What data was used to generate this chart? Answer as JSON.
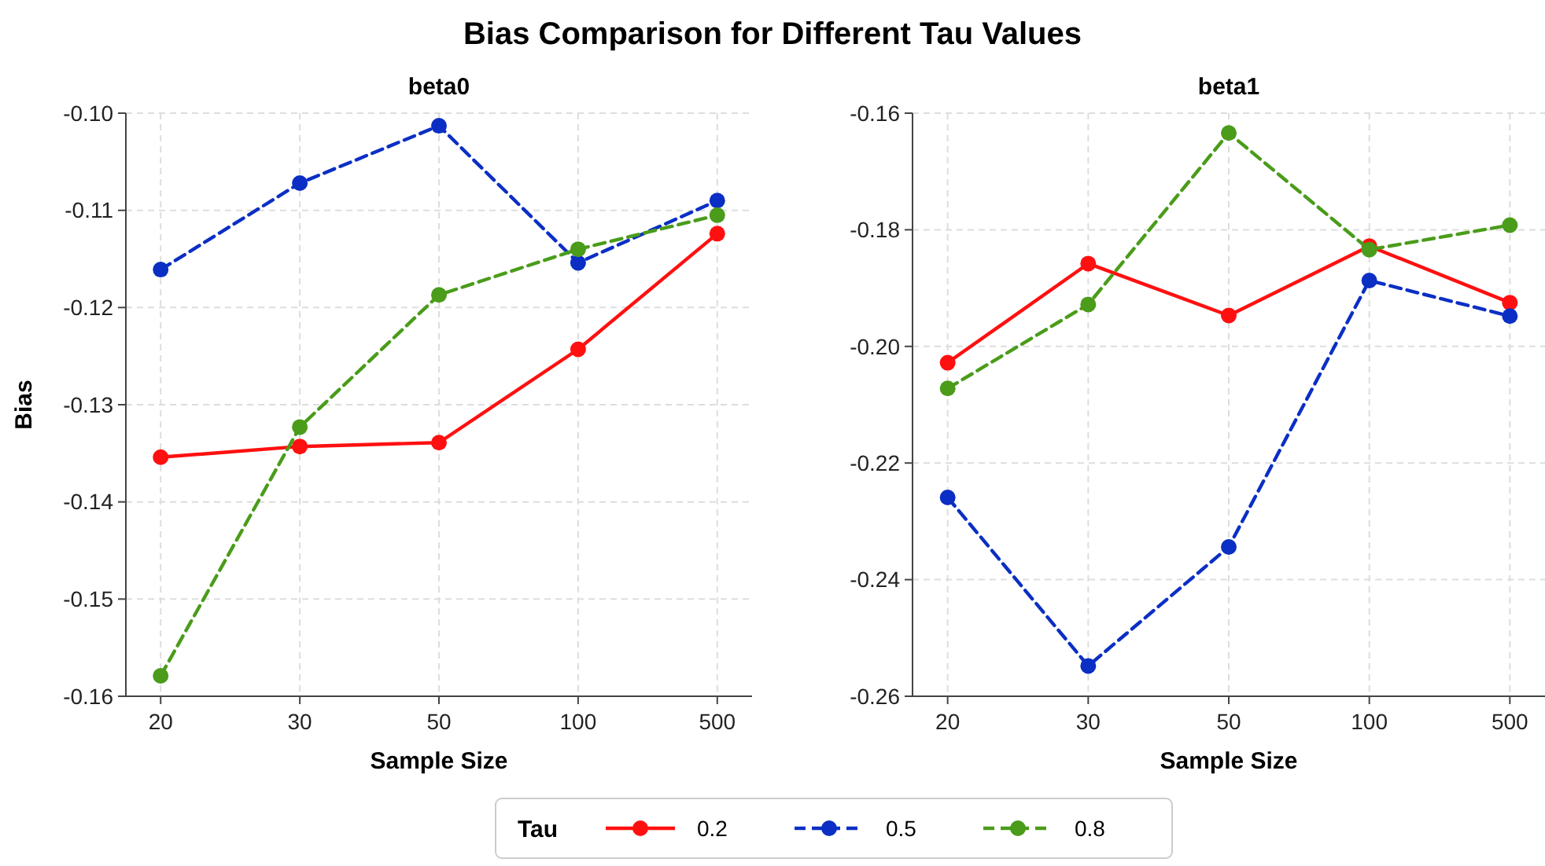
{
  "chart_data": [
    {
      "type": "line",
      "title": "beta0",
      "annotations": [
        "Bias Comparison for Different Tau Values"
      ],
      "xlabel": "Sample Size",
      "ylabel": "Bias",
      "categories": [
        "20",
        "30",
        "50",
        "100",
        "500"
      ],
      "ylim": [
        -0.16,
        -0.1
      ],
      "yticks": [
        {
          "value": -0.16,
          "label": "-0.16"
        },
        {
          "value": -0.15,
          "label": "-0.15"
        },
        {
          "value": -0.14,
          "label": "-0.14"
        },
        {
          "value": -0.13,
          "label": "-0.13"
        },
        {
          "value": -0.12,
          "label": "-0.12"
        },
        {
          "value": -0.11,
          "label": "-0.11"
        },
        {
          "value": -0.1,
          "label": "-0.10"
        }
      ],
      "grid": true,
      "marker": "circle",
      "legend": "bottom",
      "legend_title": "Tau",
      "series": [
        {
          "name": "0.2",
          "color": "#ff1010",
          "line_style": "solid",
          "values": [
            -0.1354,
            -0.1343,
            -0.1339,
            -0.1243,
            -0.1124
          ]
        },
        {
          "name": "0.5",
          "color": "#0b2fc4",
          "line_style": "dashed",
          "values": [
            -0.1161,
            -0.1072,
            -0.1013,
            -0.1154,
            -0.109
          ]
        },
        {
          "name": "0.8",
          "color": "#4a9c1a",
          "line_style": "dashed",
          "values": [
            -0.1579,
            -0.1323,
            -0.1187,
            -0.114,
            -0.1105
          ]
        }
      ]
    },
    {
      "type": "line",
      "title": "beta1",
      "xlabel": "Sample Size",
      "categories": [
        "20",
        "30",
        "50",
        "100",
        "500"
      ],
      "ylim": [
        -0.26,
        -0.16
      ],
      "yticks": [
        {
          "value": -0.26,
          "label": "-0.26"
        },
        {
          "value": -0.24,
          "label": "-0.24"
        },
        {
          "value": -0.22,
          "label": "-0.22"
        },
        {
          "value": -0.2,
          "label": "-0.20"
        },
        {
          "value": -0.18,
          "label": "-0.18"
        },
        {
          "value": -0.16,
          "label": "-0.16"
        }
      ],
      "grid": true,
      "marker": "circle",
      "series": [
        {
          "name": "0.2",
          "color": "#ff1010",
          "line_style": "solid",
          "values": [
            -0.2028,
            -0.1858,
            -0.1947,
            -0.1828,
            -0.1925
          ]
        },
        {
          "name": "0.5",
          "color": "#0b2fc4",
          "line_style": "dashed",
          "values": [
            -0.2259,
            -0.2548,
            -0.2344,
            -0.1887,
            -0.1948
          ]
        },
        {
          "name": "0.8",
          "color": "#4a9c1a",
          "line_style": "dashed",
          "values": [
            -0.2072,
            -0.1928,
            -0.1634,
            -0.1834,
            -0.1792
          ]
        }
      ]
    }
  ]
}
